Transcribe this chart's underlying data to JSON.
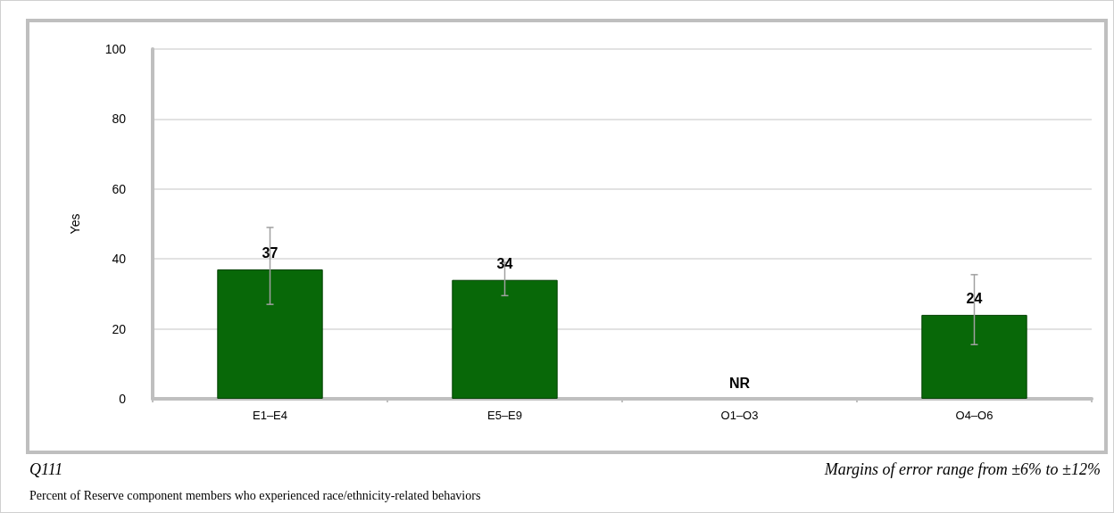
{
  "chart_data": {
    "type": "bar",
    "categories": [
      "E1–E4",
      "E5–E9",
      "O1–O3",
      "O4–O6"
    ],
    "values": [
      37,
      34,
      null,
      24
    ],
    "value_labels": [
      "37",
      "34",
      "NR",
      "24"
    ],
    "errors": [
      [
        27,
        49
      ],
      [
        29.5,
        39
      ],
      null,
      [
        15.5,
        35.5
      ]
    ],
    "color": "#086808",
    "ylabel": "Yes",
    "ylim": [
      0,
      100
    ],
    "yticks": [
      0,
      20,
      40,
      60,
      80,
      100
    ],
    "grid": "y",
    "annotations": [
      "Q111",
      "Margins of error range from ±6% to ±12%",
      "Percent of Reserve component members who experienced race/ethnicity-related behaviors"
    ]
  }
}
